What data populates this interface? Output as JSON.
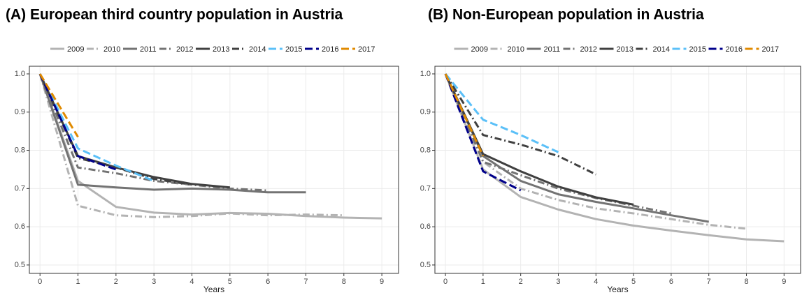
{
  "chart_data": [
    {
      "type": "line",
      "title": "(A) European third country population in Austria",
      "xlabel": "Years",
      "x": [
        0,
        1,
        2,
        3,
        4,
        5,
        6,
        7,
        8,
        9
      ],
      "xlim": [
        -0.28,
        9.44
      ],
      "ylim": [
        0.478,
        1.02
      ],
      "xticks": [
        0,
        1,
        2,
        3,
        4,
        5,
        6,
        7,
        8,
        9
      ],
      "yticks": [
        0.5,
        0.6,
        0.7,
        0.8,
        0.9,
        {
          "value": 1,
          "label": "1.0"
        }
      ],
      "grid": true,
      "series": [
        {
          "name": "2009",
          "color": "#b3b3b3",
          "dash": "solid",
          "values": [
            1,
            0.72,
            0.652,
            0.637,
            0.632,
            0.636,
            0.634,
            0.628,
            0.624,
            0.622
          ]
        },
        {
          "name": "2010",
          "color": "#b3b3b3",
          "dash": "dashdot",
          "values": [
            1,
            0.655,
            0.63,
            0.625,
            0.628,
            0.635,
            0.63,
            0.632,
            0.63,
            null
          ]
        },
        {
          "name": "2011",
          "color": "#737373",
          "dash": "solid",
          "values": [
            1,
            0.71,
            0.703,
            0.697,
            0.7,
            0.697,
            0.69,
            0.69,
            null,
            null
          ]
        },
        {
          "name": "2012",
          "color": "#737373",
          "dash": "dashdot",
          "values": [
            1,
            0.755,
            0.74,
            0.72,
            0.71,
            0.7,
            0.695,
            null,
            null,
            null
          ]
        },
        {
          "name": "2013",
          "color": "#404040",
          "dash": "solid",
          "values": [
            1,
            0.785,
            0.755,
            0.73,
            0.712,
            0.703,
            null,
            null,
            null,
            null
          ]
        },
        {
          "name": "2014",
          "color": "#404040",
          "dash": "dashdot",
          "values": [
            1,
            0.78,
            0.755,
            0.725,
            0.71,
            null,
            null,
            null,
            null,
            null
          ]
        },
        {
          "name": "2015",
          "color": "#5bc0f8",
          "dash": "dashed",
          "values": [
            1,
            0.805,
            0.76,
            0.72,
            null,
            null,
            null,
            null,
            null,
            null
          ]
        },
        {
          "name": "2016",
          "color": "#00008b",
          "dash": "dashed",
          "values": [
            1,
            0.785,
            0.75,
            null,
            null,
            null,
            null,
            null,
            null,
            null
          ]
        },
        {
          "name": "2017",
          "color": "#e08a00",
          "dash": "dashed",
          "values": [
            1,
            0.835,
            null,
            null,
            null,
            null,
            null,
            null,
            null,
            null
          ]
        }
      ]
    },
    {
      "type": "line",
      "title": "(B) Non-European population in Austria",
      "xlabel": "Years",
      "x": [
        0,
        1,
        2,
        3,
        4,
        5,
        6,
        7,
        8,
        9
      ],
      "xlim": [
        -0.28,
        9.44
      ],
      "ylim": [
        0.478,
        1.02
      ],
      "xticks": [
        0,
        1,
        2,
        3,
        4,
        5,
        6,
        7,
        8,
        9
      ],
      "yticks": [
        0.5,
        0.6,
        0.7,
        0.8,
        0.9,
        {
          "value": 1,
          "label": "1.0"
        }
      ],
      "grid": true,
      "series": [
        {
          "name": "2009",
          "color": "#b3b3b3",
          "dash": "solid",
          "values": [
            1,
            0.75,
            0.678,
            0.645,
            0.62,
            0.603,
            0.59,
            0.578,
            0.567,
            0.562
          ]
        },
        {
          "name": "2010",
          "color": "#b3b3b3",
          "dash": "dashdot",
          "values": [
            1,
            0.77,
            0.7,
            0.67,
            0.648,
            0.635,
            0.62,
            0.605,
            0.595,
            null
          ]
        },
        {
          "name": "2011",
          "color": "#737373",
          "dash": "solid",
          "values": [
            1,
            0.785,
            0.72,
            0.685,
            0.665,
            0.648,
            0.63,
            0.613,
            null,
            null
          ]
        },
        {
          "name": "2012",
          "color": "#737373",
          "dash": "dashdot",
          "values": [
            1,
            0.77,
            0.735,
            0.7,
            0.675,
            0.655,
            0.635,
            null,
            null,
            null
          ]
        },
        {
          "name": "2013",
          "color": "#404040",
          "dash": "solid",
          "values": [
            1,
            0.79,
            0.745,
            0.705,
            0.677,
            0.658,
            null,
            null,
            null,
            null
          ]
        },
        {
          "name": "2014",
          "color": "#404040",
          "dash": "dashdot",
          "values": [
            1,
            0.84,
            0.815,
            0.785,
            0.737,
            null,
            null,
            null,
            null,
            null
          ]
        },
        {
          "name": "2015",
          "color": "#5bc0f8",
          "dash": "dashed",
          "values": [
            1,
            0.88,
            0.84,
            0.795,
            null,
            null,
            null,
            null,
            null,
            null
          ]
        },
        {
          "name": "2016",
          "color": "#00008b",
          "dash": "dashed",
          "values": [
            1,
            0.745,
            0.695,
            null,
            null,
            null,
            null,
            null,
            null,
            null
          ]
        },
        {
          "name": "2017",
          "color": "#e08a00",
          "dash": "dashed",
          "values": [
            1,
            0.785,
            null,
            null,
            null,
            null,
            null,
            null,
            null,
            null
          ]
        }
      ]
    }
  ]
}
